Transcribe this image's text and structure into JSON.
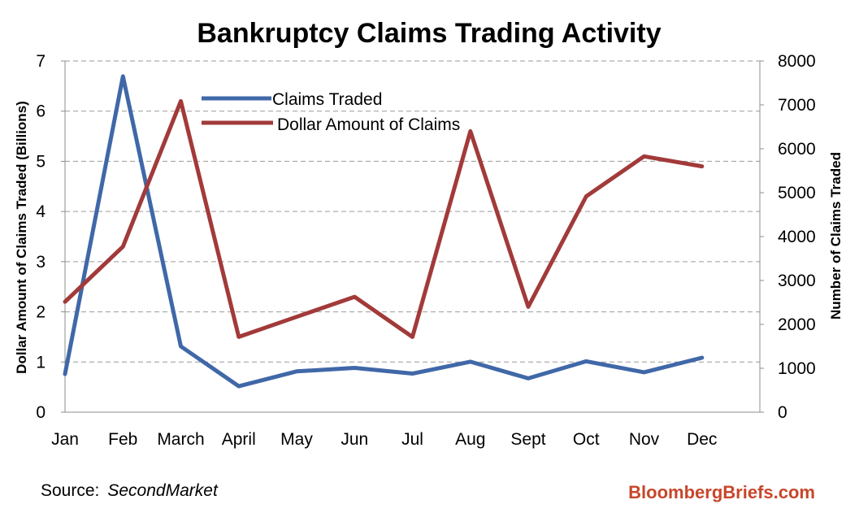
{
  "chart_data": {
    "type": "line",
    "title": "Bankruptcy Claims Trading Activity",
    "xlabel": "",
    "ylabel_left": "Dollar Amount of Claims Traded (Billions)",
    "ylabel_right": "Number of Claims Traded",
    "categories": [
      "Jan",
      "Feb",
      "March",
      "April",
      "May",
      "Jun",
      "Jul",
      "Aug",
      "Sept",
      "Oct",
      "Nov",
      "Dec"
    ],
    "ylim_left": [
      0,
      7
    ],
    "ylim_right": [
      0,
      8000
    ],
    "yticks_left": [
      "0",
      "1",
      "2",
      "3",
      "4",
      "5",
      "6",
      "7"
    ],
    "yticks_right": [
      "0",
      "1000",
      "2000",
      "3000",
      "4000",
      "5000",
      "6000",
      "7000",
      "8000"
    ],
    "grid": "horizontal dashed",
    "legend_position": "top-left",
    "series": [
      {
        "name": "Claims Traded",
        "axis": "right",
        "color": "#4068A8",
        "values": [
          870,
          7650,
          1500,
          590,
          930,
          1010,
          880,
          1150,
          770,
          1160,
          910,
          1240
        ]
      },
      {
        "name": "Dollar Amount of Claims",
        "axis": "left",
        "color": "#A23A3A",
        "values": [
          2.2,
          3.3,
          6.2,
          1.5,
          1.9,
          2.3,
          1.5,
          5.6,
          2.1,
          4.3,
          5.1,
          4.9
        ]
      }
    ]
  },
  "footer": {
    "source_label": "Source:",
    "source_name": "SecondMarket",
    "brand": "BloombergBriefs.com",
    "brand_color": "#C8462B"
  }
}
